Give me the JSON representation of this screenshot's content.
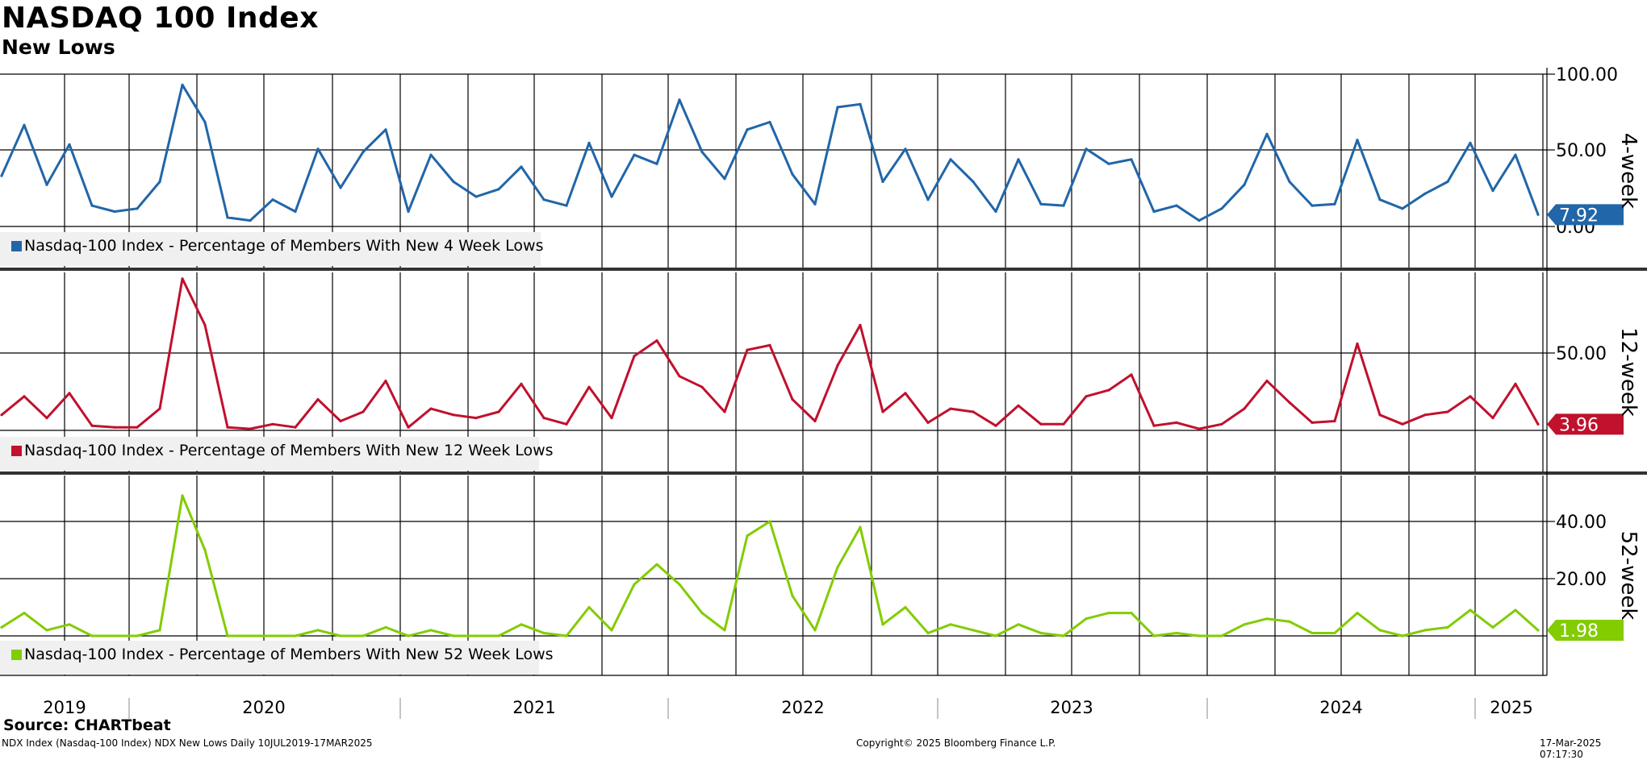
{
  "header": {
    "title": "NASDAQ 100 Index",
    "subtitle": "New Lows"
  },
  "footer": {
    "source": "Source: CHARTbeat",
    "left": "NDX Index (Nasdaq-100 Index) NDX New Lows  Daily 10JUL2019-17MAR2025",
    "center": "Copyright© 2025 Bloomberg Finance L.P.",
    "right": "17-Mar-2025 07:17:30"
  },
  "colors": {
    "panel1": "#2166a8",
    "panel2": "#c0112d",
    "panel3": "#82cc00",
    "grid": "#000000"
  },
  "chart_data": [
    {
      "type": "line",
      "panel_label": "4-week",
      "legend": "Nasdaq-100 Index - Percentage of Members With New 4 Week Lows",
      "color": "#2166a8",
      "ylim": [
        0,
        100
      ],
      "yticks": [
        "100.00",
        "50.00",
        "0.00"
      ],
      "last_value_label": "7.92",
      "x_range": [
        "2019-07-10",
        "2025-03-17"
      ],
      "x": [
        "2019-07",
        "2019-08",
        "2019-09",
        "2019-10",
        "2019-11",
        "2019-12",
        "2020-01",
        "2020-02",
        "2020-03",
        "2020-04",
        "2020-05",
        "2020-06",
        "2020-07",
        "2020-08",
        "2020-09",
        "2020-10",
        "2020-11",
        "2020-12",
        "2021-01",
        "2021-02",
        "2021-03",
        "2021-04",
        "2021-05",
        "2021-06",
        "2021-07",
        "2021-08",
        "2021-09",
        "2021-10",
        "2021-11",
        "2021-12",
        "2022-01",
        "2022-02",
        "2022-03",
        "2022-04",
        "2022-05",
        "2022-06",
        "2022-07",
        "2022-08",
        "2022-09",
        "2022-10",
        "2022-11",
        "2022-12",
        "2023-01",
        "2023-02",
        "2023-03",
        "2023-04",
        "2023-05",
        "2023-06",
        "2023-07",
        "2023-08",
        "2023-09",
        "2023-10",
        "2023-11",
        "2023-12",
        "2024-01",
        "2024-02",
        "2024-03",
        "2024-04",
        "2024-05",
        "2024-06",
        "2024-07",
        "2024-08",
        "2024-09",
        "2024-10",
        "2024-11",
        "2024-12",
        "2025-01",
        "2025-02",
        "2025-03"
      ],
      "values": [
        34,
        68,
        28,
        55,
        14,
        10,
        12,
        30,
        95,
        70,
        6,
        4,
        18,
        10,
        52,
        26,
        50,
        65,
        10,
        48,
        30,
        20,
        25,
        40,
        18,
        14,
        56,
        20,
        48,
        42,
        85,
        50,
        32,
        65,
        70,
        35,
        15,
        80,
        82,
        30,
        52,
        18,
        45,
        30,
        10,
        45,
        15,
        14,
        52,
        42,
        45,
        10,
        14,
        4,
        12,
        28,
        62,
        30,
        14,
        15,
        58,
        18,
        12,
        22,
        30,
        56,
        24,
        48,
        7.92
      ]
    },
    {
      "type": "line",
      "panel_label": "12-week",
      "legend": "Nasdaq-100 Index - Percentage of Members With New 12 Week Lows",
      "color": "#c0112d",
      "ylim": [
        0,
        100
      ],
      "yticks": [
        "50.00"
      ],
      "last_value_label": "3.96",
      "x_range": [
        "2019-07-10",
        "2025-03-17"
      ],
      "x": [
        "2019-07",
        "2019-08",
        "2019-09",
        "2019-10",
        "2019-11",
        "2019-12",
        "2020-01",
        "2020-02",
        "2020-03",
        "2020-04",
        "2020-05",
        "2020-06",
        "2020-07",
        "2020-08",
        "2020-09",
        "2020-10",
        "2020-11",
        "2020-12",
        "2021-01",
        "2021-02",
        "2021-03",
        "2021-04",
        "2021-05",
        "2021-06",
        "2021-07",
        "2021-08",
        "2021-09",
        "2021-10",
        "2021-11",
        "2021-12",
        "2022-01",
        "2022-02",
        "2022-03",
        "2022-04",
        "2022-05",
        "2022-06",
        "2022-07",
        "2022-08",
        "2022-09",
        "2022-10",
        "2022-11",
        "2022-12",
        "2023-01",
        "2023-02",
        "2023-03",
        "2023-04",
        "2023-05",
        "2023-06",
        "2023-07",
        "2023-08",
        "2023-09",
        "2023-10",
        "2023-11",
        "2023-12",
        "2024-01",
        "2024-02",
        "2024-03",
        "2024-04",
        "2024-05",
        "2024-06",
        "2024-07",
        "2024-08",
        "2024-09",
        "2024-10",
        "2024-11",
        "2024-12",
        "2025-01",
        "2025-02",
        "2025-03"
      ],
      "values": [
        10,
        22,
        8,
        24,
        3,
        2,
        2,
        14,
        98,
        68,
        2,
        1,
        4,
        2,
        20,
        6,
        12,
        32,
        2,
        14,
        10,
        8,
        12,
        30,
        8,
        4,
        28,
        8,
        48,
        58,
        35,
        28,
        12,
        52,
        55,
        20,
        6,
        42,
        68,
        12,
        24,
        5,
        14,
        12,
        3,
        16,
        4,
        4,
        22,
        26,
        36,
        3,
        5,
        1,
        4,
        14,
        32,
        18,
        5,
        6,
        56,
        10,
        4,
        10,
        12,
        22,
        8,
        30,
        3.96
      ]
    },
    {
      "type": "line",
      "panel_label": "52-week",
      "legend": "Nasdaq-100 Index - Percentage of Members With New 52 Week Lows",
      "color": "#82cc00",
      "ylim": [
        0,
        50
      ],
      "yticks": [
        "40.00",
        "20.00"
      ],
      "last_value_label": "1.98",
      "x_range": [
        "2019-07-10",
        "2025-03-17"
      ],
      "x": [
        "2019-07",
        "2019-08",
        "2019-09",
        "2019-10",
        "2019-11",
        "2019-12",
        "2020-01",
        "2020-02",
        "2020-03",
        "2020-04",
        "2020-05",
        "2020-06",
        "2020-07",
        "2020-08",
        "2020-09",
        "2020-10",
        "2020-11",
        "2020-12",
        "2021-01",
        "2021-02",
        "2021-03",
        "2021-04",
        "2021-05",
        "2021-06",
        "2021-07",
        "2021-08",
        "2021-09",
        "2021-10",
        "2021-11",
        "2021-12",
        "2022-01",
        "2022-02",
        "2022-03",
        "2022-04",
        "2022-05",
        "2022-06",
        "2022-07",
        "2022-08",
        "2022-09",
        "2022-10",
        "2022-11",
        "2022-12",
        "2023-01",
        "2023-02",
        "2023-03",
        "2023-04",
        "2023-05",
        "2023-06",
        "2023-07",
        "2023-08",
        "2023-09",
        "2023-10",
        "2023-11",
        "2023-12",
        "2024-01",
        "2024-02",
        "2024-03",
        "2024-04",
        "2024-05",
        "2024-06",
        "2024-07",
        "2024-08",
        "2024-09",
        "2024-10",
        "2024-11",
        "2024-12",
        "2025-01",
        "2025-02",
        "2025-03"
      ],
      "values": [
        3,
        8,
        2,
        4,
        0,
        0,
        0,
        2,
        49,
        30,
        0,
        0,
        0,
        0,
        2,
        0,
        0,
        3,
        0,
        2,
        0,
        0,
        0,
        4,
        1,
        0,
        10,
        2,
        18,
        25,
        18,
        8,
        2,
        35,
        40,
        14,
        2,
        24,
        38,
        4,
        10,
        1,
        4,
        2,
        0,
        4,
        1,
        0,
        6,
        8,
        8,
        0,
        1,
        0,
        0,
        4,
        6,
        5,
        1,
        1,
        8,
        2,
        0,
        2,
        3,
        9,
        3,
        9,
        1.98
      ]
    }
  ],
  "x_axis": {
    "year_labels": [
      "2019",
      "2020",
      "2021",
      "2022",
      "2023",
      "2024",
      "2025"
    ]
  }
}
